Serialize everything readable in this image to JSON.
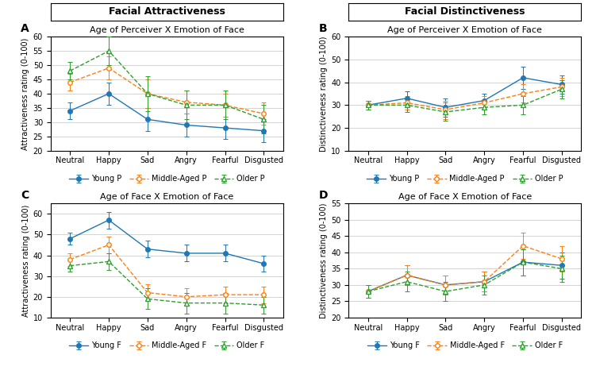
{
  "chart_data": [
    {
      "type": "line",
      "header": "Facial Attractiveness",
      "annotations": [
        "A"
      ],
      "title": "Age of Perceiver X Emotion of Face",
      "ylabel": "Attractiveness rating (0-100)",
      "categories": [
        "Neutral",
        "Happy",
        "Sad",
        "Angry",
        "Fearful",
        "Disgusted"
      ],
      "series": [
        {
          "name": "Young P",
          "values": [
            34,
            40,
            31,
            29,
            28,
            27
          ],
          "errors": [
            3,
            4,
            4,
            4,
            4,
            4
          ],
          "marker": "filled circle",
          "line_style": "solid"
        },
        {
          "name": "Middle-Aged P",
          "values": [
            44,
            49,
            40,
            37,
            36,
            33
          ],
          "errors": [
            3,
            4,
            5,
            4,
            4,
            4
          ],
          "marker": "open circle",
          "line_style": "dashed"
        },
        {
          "name": "Older P",
          "values": [
            48,
            55,
            40,
            36,
            36,
            31
          ],
          "errors": [
            3,
            5,
            6,
            5,
            5,
            5
          ],
          "marker": "open triangle",
          "line_style": "dashed"
        }
      ],
      "ylim": [
        20,
        60
      ],
      "yticks": [
        20,
        25,
        30,
        35,
        40,
        45,
        50,
        55,
        60
      ],
      "grid": true,
      "legend": "below"
    },
    {
      "type": "line",
      "header": "Facial Distinctiveness",
      "annotations": [
        "B"
      ],
      "title": "Age of Perceiver X Emotion of Face",
      "ylabel": "Distinctiveness rating (0-100)",
      "categories": [
        "Neutral",
        "Happy",
        "Sad",
        "Angry",
        "Fearful",
        "Disgusted"
      ],
      "series": [
        {
          "name": "Young P",
          "values": [
            30,
            33,
            29,
            32,
            42,
            39
          ],
          "errors": [
            2,
            3,
            4,
            3,
            5,
            4
          ],
          "marker": "filled circle",
          "line_style": "solid"
        },
        {
          "name": "Middle-Aged P",
          "values": [
            30,
            31,
            28,
            31,
            35,
            38
          ],
          "errors": [
            2,
            3,
            4,
            3,
            4,
            4
          ],
          "marker": "open circle",
          "line_style": "dashed"
        },
        {
          "name": "Older P",
          "values": [
            30,
            30,
            27,
            29,
            30,
            37
          ],
          "errors": [
            2,
            3,
            4,
            3,
            4,
            4
          ],
          "marker": "open triangle",
          "line_style": "dashed"
        }
      ],
      "ylim": [
        10,
        60
      ],
      "yticks": [
        10,
        20,
        30,
        40,
        50,
        60
      ],
      "grid": true,
      "legend": "below"
    },
    {
      "type": "line",
      "annotations": [
        "C"
      ],
      "title": "Age of Face X Emotion of Face",
      "ylabel": "Attractiveness rating (0-100)",
      "categories": [
        "Neutral",
        "Happy",
        "Sad",
        "Angry",
        "Fearful",
        "Disgusted"
      ],
      "series": [
        {
          "name": "Young F",
          "values": [
            48,
            57,
            43,
            41,
            41,
            36
          ],
          "errors": [
            3,
            4,
            4,
            4,
            4,
            4
          ],
          "marker": "filled circle",
          "line_style": "solid"
        },
        {
          "name": "Middle-Aged F",
          "values": [
            38,
            45,
            22,
            20,
            21,
            21
          ],
          "errors": [
            3,
            4,
            4,
            4,
            4,
            4
          ],
          "marker": "open circle",
          "line_style": "dashed"
        },
        {
          "name": "Older F",
          "values": [
            35,
            37,
            19,
            17,
            17,
            16
          ],
          "errors": [
            3,
            4,
            5,
            5,
            5,
            4
          ],
          "marker": "open triangle",
          "line_style": "dashed"
        }
      ],
      "ylim": [
        10,
        65
      ],
      "yticks": [
        10,
        20,
        30,
        40,
        50,
        60
      ],
      "grid": true,
      "legend": "below"
    },
    {
      "type": "line",
      "annotations": [
        "D"
      ],
      "title": "Age of Face X Emotion of Face",
      "ylabel": "Distinctiveness rating (0-100)",
      "categories": [
        "Neutral",
        "Happy",
        "Sad",
        "Angry",
        "Fearful",
        "Disgusted"
      ],
      "series": [
        {
          "name": "Young F",
          "values": [
            28,
            33,
            30,
            31,
            37,
            36
          ],
          "errors": [
            2,
            3,
            3,
            3,
            4,
            4
          ],
          "marker": "filled circle",
          "line_style": "solid"
        },
        {
          "name": "Middle-Aged F",
          "values": [
            28,
            33,
            30,
            31,
            42,
            38
          ],
          "errors": [
            2,
            3,
            3,
            3,
            4,
            4
          ],
          "marker": "open circle",
          "line_style": "dashed"
        },
        {
          "name": "Older F",
          "values": [
            28,
            31,
            28,
            30,
            37,
            35
          ],
          "errors": [
            2,
            3,
            3,
            3,
            4,
            4
          ],
          "marker": "open triangle",
          "line_style": "dashed"
        }
      ],
      "ylim": [
        20,
        55
      ],
      "yticks": [
        20,
        25,
        30,
        35,
        40,
        45,
        50,
        55
      ],
      "grid": true,
      "legend": "below"
    }
  ]
}
